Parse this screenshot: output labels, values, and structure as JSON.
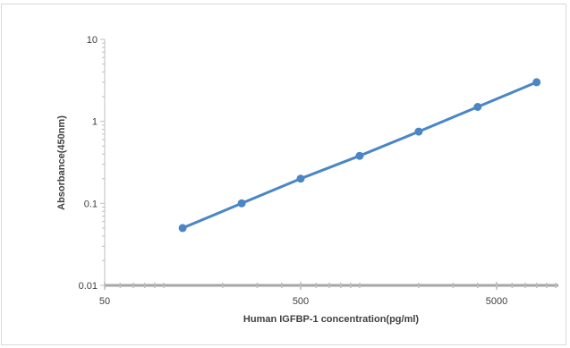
{
  "chart_data": {
    "type": "line",
    "title": "",
    "xlabel": "Human IGFBP-1 concentration(pg/ml)",
    "ylabel": "Absorbance(450nm)",
    "x_scale": "log",
    "y_scale": "log",
    "xlim": [
      50,
      10000
    ],
    "ylim": [
      0.01,
      10
    ],
    "x_ticks": [
      "50",
      "500",
      "5000"
    ],
    "y_ticks": [
      "0.01",
      "0.1",
      "1",
      "10"
    ],
    "grid": false,
    "legend": "none",
    "series": [
      {
        "color": "#4a86c5",
        "x": [
          125,
          250,
          500,
          1000,
          2000,
          4000,
          8000
        ],
        "y": [
          0.05,
          0.1,
          0.2,
          0.38,
          0.75,
          1.5,
          3.0
        ]
      }
    ]
  }
}
